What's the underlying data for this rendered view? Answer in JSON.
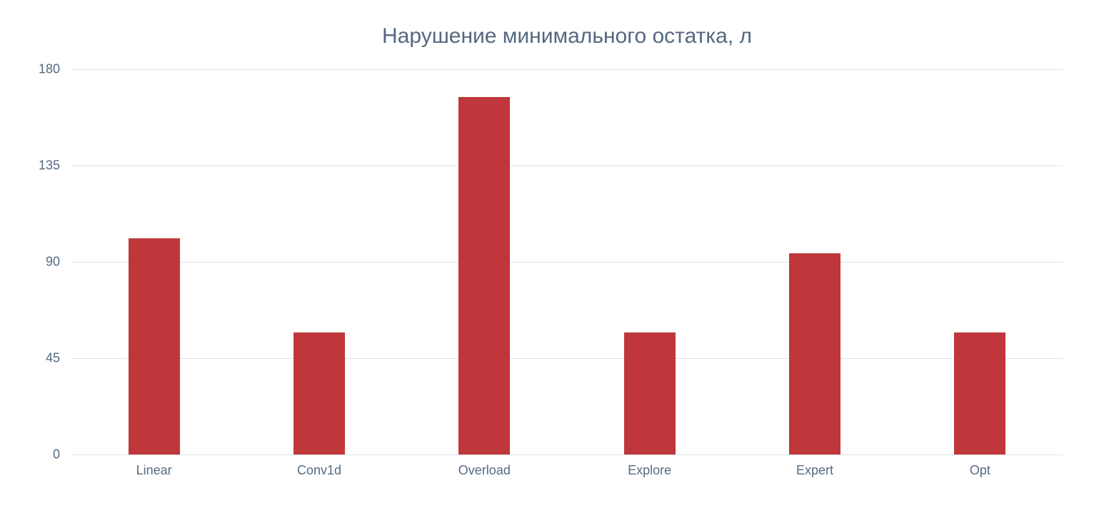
{
  "chart_data": {
    "type": "bar",
    "title": "Нарушение минимального остатка, л",
    "xlabel": "",
    "ylabel": "",
    "categories": [
      "Linear",
      "Conv1d",
      "Overload",
      "Explore",
      "Expert",
      "Opt"
    ],
    "values": [
      101,
      57,
      167,
      57,
      94,
      57
    ],
    "ylim": [
      0,
      180
    ],
    "yticks": [
      0,
      45,
      90,
      135,
      180
    ],
    "grid": true,
    "legend": null,
    "bar_color": "#bf373a"
  }
}
